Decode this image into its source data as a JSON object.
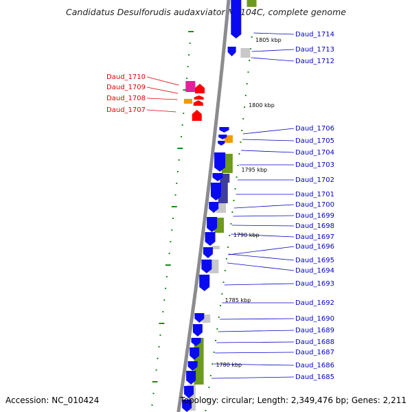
{
  "title": "Candidatus Desulforudis audaxviator MP104C, complete genome",
  "accession": "Accession: NC_010424",
  "topology": "Topology: circular; Length: 2,349,476 bp; Genes: 2,211",
  "colors": {
    "backbone": "#8c8c8c",
    "forward_arrow": "#0a0af0",
    "reverse_arrow": "#ff0000",
    "label_forward": "#0000c8",
    "label_reverse": "#dd0000",
    "green_box": "#6b9a1e",
    "gray_box": "#c8c8c8",
    "orange_box": "#f29a00",
    "magenta_box": "#e1229b",
    "slate_box": "#3f3f9a",
    "tick_green": "#1a8c1a"
  },
  "kbp_markers": [
    "1805 kbp",
    "1800 kbp",
    "1795 kbp",
    "1790 kbp",
    "1785 kbp",
    "1780 kbp"
  ],
  "forward_genes": [
    "Daud_1714",
    "Daud_1713",
    "Daud_1712",
    "Daud_1706",
    "Daud_1705",
    "Daud_1704",
    "Daud_1703",
    "Daud_1702",
    "Daud_1701",
    "Daud_1700",
    "Daud_1699",
    "Daud_1698",
    "Daud_1697",
    "Daud_1696",
    "Daud_1695",
    "Daud_1694",
    "Daud_1693",
    "Daud_1692",
    "Daud_1690",
    "Daud_1689",
    "Daud_1688",
    "Daud_1687",
    "Daud_1686",
    "Daud_1685"
  ],
  "reverse_genes": [
    "Daud_1710",
    "Daud_1709",
    "Daud_1708",
    "Daud_1707"
  ]
}
